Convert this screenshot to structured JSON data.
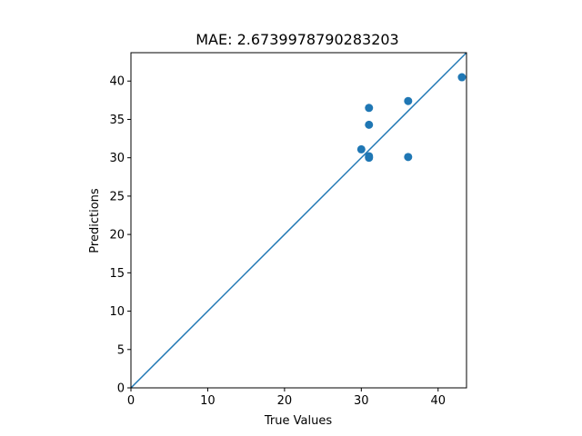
{
  "chart_data": {
    "type": "scatter",
    "title": "MAE: 2.6739978790283203",
    "xlabel": "True Values",
    "ylabel": "Predictions",
    "xlim": [
      0,
      43.7
    ],
    "ylim": [
      0,
      43.7
    ],
    "xticks": [
      0,
      10,
      20,
      30,
      40
    ],
    "yticks": [
      0,
      5,
      10,
      15,
      20,
      25,
      30,
      35,
      40
    ],
    "grid": false,
    "points": [
      {
        "x": 31.0,
        "y": 36.5
      },
      {
        "x": 31.0,
        "y": 34.3
      },
      {
        "x": 30.0,
        "y": 31.1
      },
      {
        "x": 31.0,
        "y": 30.2
      },
      {
        "x": 31.0,
        "y": 30.0
      },
      {
        "x": 36.1,
        "y": 37.4
      },
      {
        "x": 36.1,
        "y": 30.1
      },
      {
        "x": 43.1,
        "y": 40.5
      }
    ],
    "reference_line": {
      "type": "identity",
      "from": 0,
      "to": 43.7
    },
    "colors": {
      "marker": "#1f77b4",
      "line": "#1f77b4",
      "axes": "#000000"
    }
  }
}
